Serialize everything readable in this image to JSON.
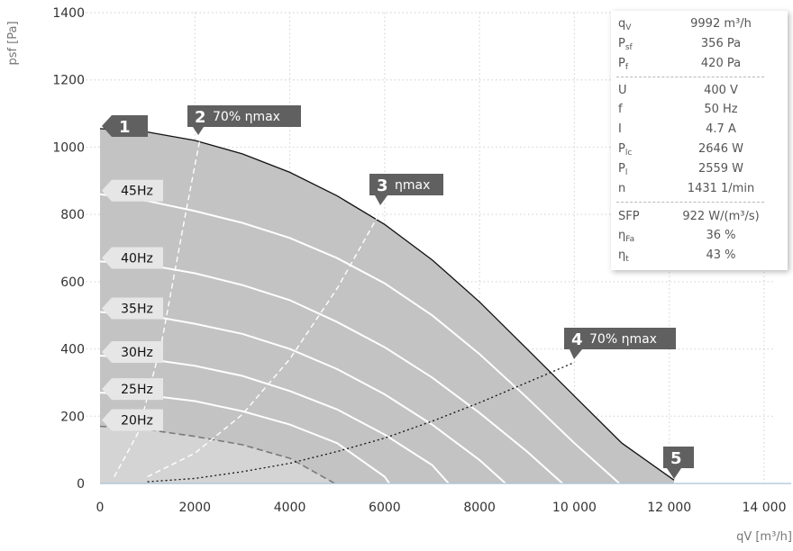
{
  "chart_data": {
    "type": "line",
    "xlabel": "qV [m³/h]",
    "ylabel": "psf [Pa]",
    "xlim": [
      0,
      14000
    ],
    "ylim": [
      0,
      1400
    ],
    "xticks": [
      0,
      2000,
      4000,
      6000,
      8000,
      10000,
      12000,
      14000
    ],
    "xtick_labels": [
      "0",
      "2000",
      "4000",
      "6000",
      "8000",
      "10 000",
      "12 000",
      "14 000"
    ],
    "yticks": [
      0,
      200,
      400,
      600,
      800,
      1000,
      1200,
      1400
    ],
    "ytick_labels": [
      "0",
      "200",
      "400",
      "600",
      "800",
      "1000",
      "1200",
      "1400"
    ],
    "grid": true,
    "series": [
      {
        "name": "",
        "x": [
          0,
          1000,
          2000,
          3000,
          4000,
          5000,
          6000,
          7000,
          8000,
          9000,
          10000,
          11000,
          12100
        ],
        "y": [
          1055,
          1045,
          1020,
          980,
          925,
          855,
          770,
          665,
          540,
          400,
          260,
          120,
          10
        ]
      },
      {
        "name": "45Hz",
        "x": [
          0,
          1000,
          2000,
          3000,
          4000,
          5000,
          6000,
          7000,
          8000,
          9000,
          10000,
          10950
        ],
        "y": [
          860,
          840,
          810,
          775,
          730,
          670,
          595,
          500,
          385,
          255,
          120,
          0
        ]
      },
      {
        "name": "40Hz",
        "x": [
          0,
          1000,
          2000,
          3000,
          4000,
          5000,
          6000,
          7000,
          8000,
          9000,
          9750
        ],
        "y": [
          660,
          650,
          625,
          590,
          545,
          480,
          405,
          315,
          210,
          95,
          0
        ]
      },
      {
        "name": "35Hz",
        "x": [
          0,
          1000,
          2000,
          3000,
          4000,
          5000,
          6000,
          7000,
          8000,
          8550
        ],
        "y": [
          510,
          500,
          475,
          445,
          400,
          340,
          265,
          175,
          70,
          0
        ]
      },
      {
        "name": "30Hz",
        "x": [
          0,
          1000,
          2000,
          3000,
          4000,
          5000,
          6000,
          7000,
          7350
        ],
        "y": [
          380,
          370,
          350,
          320,
          275,
          220,
          145,
          55,
          0
        ]
      },
      {
        "name": "25Hz",
        "x": [
          0,
          1000,
          2000,
          3000,
          4000,
          5000,
          6000,
          6100
        ],
        "y": [
          270,
          262,
          245,
          215,
          175,
          120,
          20,
          0
        ]
      },
      {
        "name": "20Hz",
        "x": [
          0,
          1000,
          2000,
          3000,
          4000,
          4950
        ],
        "y": [
          170,
          160,
          140,
          115,
          75,
          0
        ]
      }
    ],
    "system_curves": [
      {
        "x": [
          300,
          800,
          1300,
          1800,
          2100
        ],
        "y": [
          20,
          150,
          420,
          800,
          1020
        ]
      },
      {
        "x": [
          1000,
          2000,
          3000,
          4000,
          5000,
          6000
        ],
        "y": [
          20,
          90,
          205,
          370,
          580,
          830
        ]
      },
      {
        "x": [
          1000,
          2000,
          3000,
          4000,
          5000,
          6000,
          7000,
          8000,
          9000,
          10000
        ],
        "y": [
          5,
          15,
          35,
          60,
          95,
          135,
          185,
          240,
          300,
          360
        ]
      }
    ],
    "markers": [
      {
        "number": "1",
        "text": ""
      },
      {
        "number": "2",
        "text": "70% ηmax"
      },
      {
        "number": "3",
        "text": "ηmax"
      },
      {
        "number": "4",
        "text": "70% ηmax"
      },
      {
        "number": "5",
        "text": ""
      }
    ]
  },
  "info": {
    "rows": [
      {
        "sym": "q",
        "sub": "V",
        "value": "9992 m³/h"
      },
      {
        "sym": "P",
        "sub": "sf",
        "value": "356 Pa"
      },
      {
        "sym": "P",
        "sub": "f",
        "value": "420 Pa"
      },
      {
        "sym": "U",
        "sub": "",
        "value": "400 V"
      },
      {
        "sym": "f",
        "sub": "",
        "value": "50 Hz"
      },
      {
        "sym": "I",
        "sub": "",
        "value": "4.7 A"
      },
      {
        "sym": "P",
        "sub": "lc",
        "value": "2646 W"
      },
      {
        "sym": "P",
        "sub": "l",
        "value": "2559 W"
      },
      {
        "sym": "n",
        "sub": "",
        "value": "1431 1/min"
      },
      {
        "sym": "SFP",
        "sub": "",
        "value": "922 W/(m³/s)"
      },
      {
        "sym": "η",
        "sub": "Fa",
        "value": "36 %"
      },
      {
        "sym": "η",
        "sub": "t",
        "value": "43 %"
      }
    ]
  },
  "colors": {
    "fill": "#c3c3c3",
    "fill_light": "#d4d4d4",
    "grid": "#d7d7d7",
    "axis": "#a9c2d8",
    "tick_text": "#333333",
    "curve_white": "#ffffff",
    "outer_curve": "#111111",
    "label_dark": "#606060",
    "label_light": "#e6e6e6"
  }
}
